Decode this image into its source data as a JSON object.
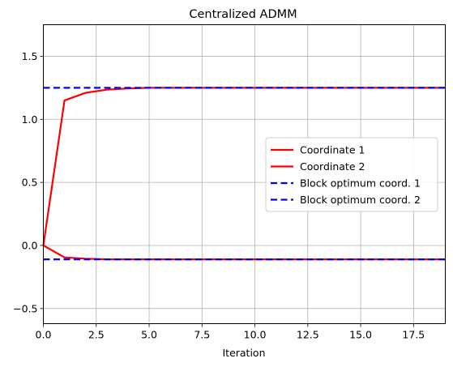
{
  "chart_data": {
    "type": "line",
    "title": "Centralized ADMM",
    "xlabel": "Iteration",
    "ylabel": "",
    "xlim": [
      0,
      19
    ],
    "ylim": [
      -0.62,
      1.75
    ],
    "x_ticks": [
      0,
      2.5,
      5,
      7.5,
      10,
      12.5,
      15,
      17.5
    ],
    "x_tick_labels": [
      "0.0",
      "2.5",
      "5.0",
      "7.5",
      "10.0",
      "12.5",
      "15.0",
      "17.5"
    ],
    "y_ticks": [
      -0.5,
      0,
      0.5,
      1,
      1.5
    ],
    "y_tick_labels": [
      "−0.5",
      "0.0",
      "0.5",
      "1.0",
      "1.5"
    ],
    "grid": true,
    "legend_position": "center-right",
    "series": [
      {
        "name": "Coordinate 1",
        "color": "#ff0000",
        "style": "solid",
        "x": [
          0,
          1,
          2,
          3,
          4,
          5,
          6,
          7,
          8,
          9,
          10,
          11,
          12,
          13,
          14,
          15,
          16,
          17,
          18,
          19
        ],
        "y": [
          0.0,
          1.15,
          1.21,
          1.235,
          1.245,
          1.25,
          1.25,
          1.25,
          1.25,
          1.25,
          1.25,
          1.25,
          1.25,
          1.25,
          1.25,
          1.25,
          1.25,
          1.25,
          1.25,
          1.25
        ]
      },
      {
        "name": "Coordinate 2",
        "color": "#ff0000",
        "style": "solid",
        "x": [
          0,
          1,
          2,
          3,
          4,
          5,
          6,
          7,
          8,
          9,
          10,
          11,
          12,
          13,
          14,
          15,
          16,
          17,
          18,
          19
        ],
        "y": [
          0.0,
          -0.095,
          -0.105,
          -0.11,
          -0.11,
          -0.11,
          -0.11,
          -0.11,
          -0.11,
          -0.11,
          -0.11,
          -0.11,
          -0.11,
          -0.11,
          -0.11,
          -0.11,
          -0.11,
          -0.11,
          -0.11,
          -0.11
        ]
      },
      {
        "name": "Block optimum coord. 1",
        "color": "#0000ff",
        "style": "dashed",
        "x": [
          0,
          19
        ],
        "y": [
          1.25,
          1.25
        ]
      },
      {
        "name": "Block optimum coord. 2",
        "color": "#0000ff",
        "style": "dashed",
        "x": [
          0,
          19
        ],
        "y": [
          -0.11,
          -0.11
        ]
      }
    ]
  }
}
